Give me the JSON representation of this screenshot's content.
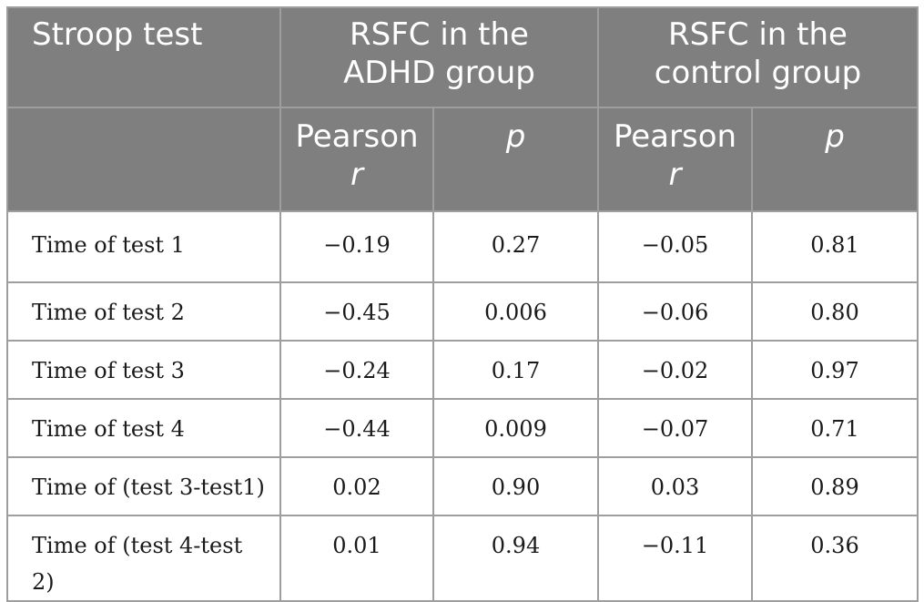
{
  "table": {
    "header": {
      "col0": "Stroop test",
      "group1": [
        "RSFC in the",
        "ADHD group"
      ],
      "group2": [
        "RSFC in the",
        "control group"
      ],
      "sub_r": [
        "Pearson",
        "r"
      ],
      "sub_p": "p"
    },
    "rows": [
      {
        "label": "Time of test 1",
        "adhd_r": "−0.19",
        "adhd_p": "0.27",
        "ctrl_r": "−0.05",
        "ctrl_p": "0.81"
      },
      {
        "label": "Time of test 2",
        "adhd_r": "−0.45",
        "adhd_p": "0.006",
        "ctrl_r": "−0.06",
        "ctrl_p": "0.80"
      },
      {
        "label": "Time of test 3",
        "adhd_r": "−0.24",
        "adhd_p": "0.17",
        "ctrl_r": "−0.02",
        "ctrl_p": "0.97"
      },
      {
        "label": "Time of test 4",
        "adhd_r": "−0.44",
        "adhd_p": "0.009",
        "ctrl_r": "−0.07",
        "ctrl_p": "0.71"
      },
      {
        "label": "Time of (test 3-test1)",
        "adhd_r": "0.02",
        "adhd_p": "0.90",
        "ctrl_r": "0.03",
        "ctrl_p": "0.89"
      },
      {
        "label": [
          "Time of (test 4-test",
          "2)"
        ],
        "adhd_r": "0.01",
        "adhd_p": "0.94",
        "ctrl_r": "−0.11",
        "ctrl_p": "0.36"
      }
    ]
  },
  "colors": {
    "header_bg": "#7f7f7f",
    "header_text": "#ffffff",
    "grid": "#9e9e9e",
    "body_text": "#1a1a1a"
  }
}
